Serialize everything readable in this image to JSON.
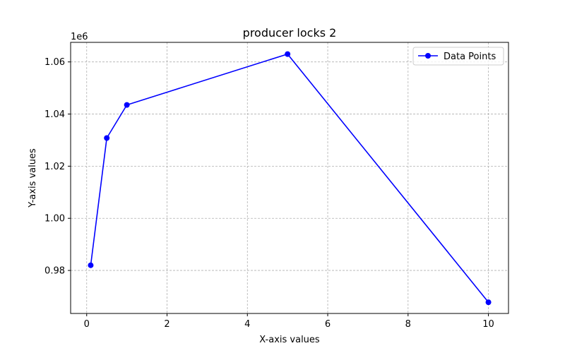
{
  "chart_data": {
    "type": "line",
    "title": "producer locks 2",
    "xlabel": "X-axis values",
    "ylabel": "Y-axis values",
    "y_offset_label": "1e6",
    "xlim": [
      -0.4,
      10.5
    ],
    "ylim": [
      963500,
      1067500
    ],
    "xticks": [
      0,
      2,
      4,
      6,
      8,
      10
    ],
    "xtick_labels": [
      "0",
      "2",
      "4",
      "6",
      "8",
      "10"
    ],
    "yticks": [
      980000,
      1000000,
      1020000,
      1040000,
      1060000
    ],
    "ytick_labels": [
      "0.98",
      "1.00",
      "1.02",
      "1.04",
      "1.06"
    ],
    "grid": true,
    "legend_position": "top-right",
    "series": [
      {
        "name": "Data Points",
        "color": "#0000ff",
        "marker": "circle",
        "x": [
          0.1,
          0.5,
          1,
          5,
          10
        ],
        "y": [
          982000,
          1030800,
          1043500,
          1063000,
          967800
        ]
      }
    ]
  }
}
